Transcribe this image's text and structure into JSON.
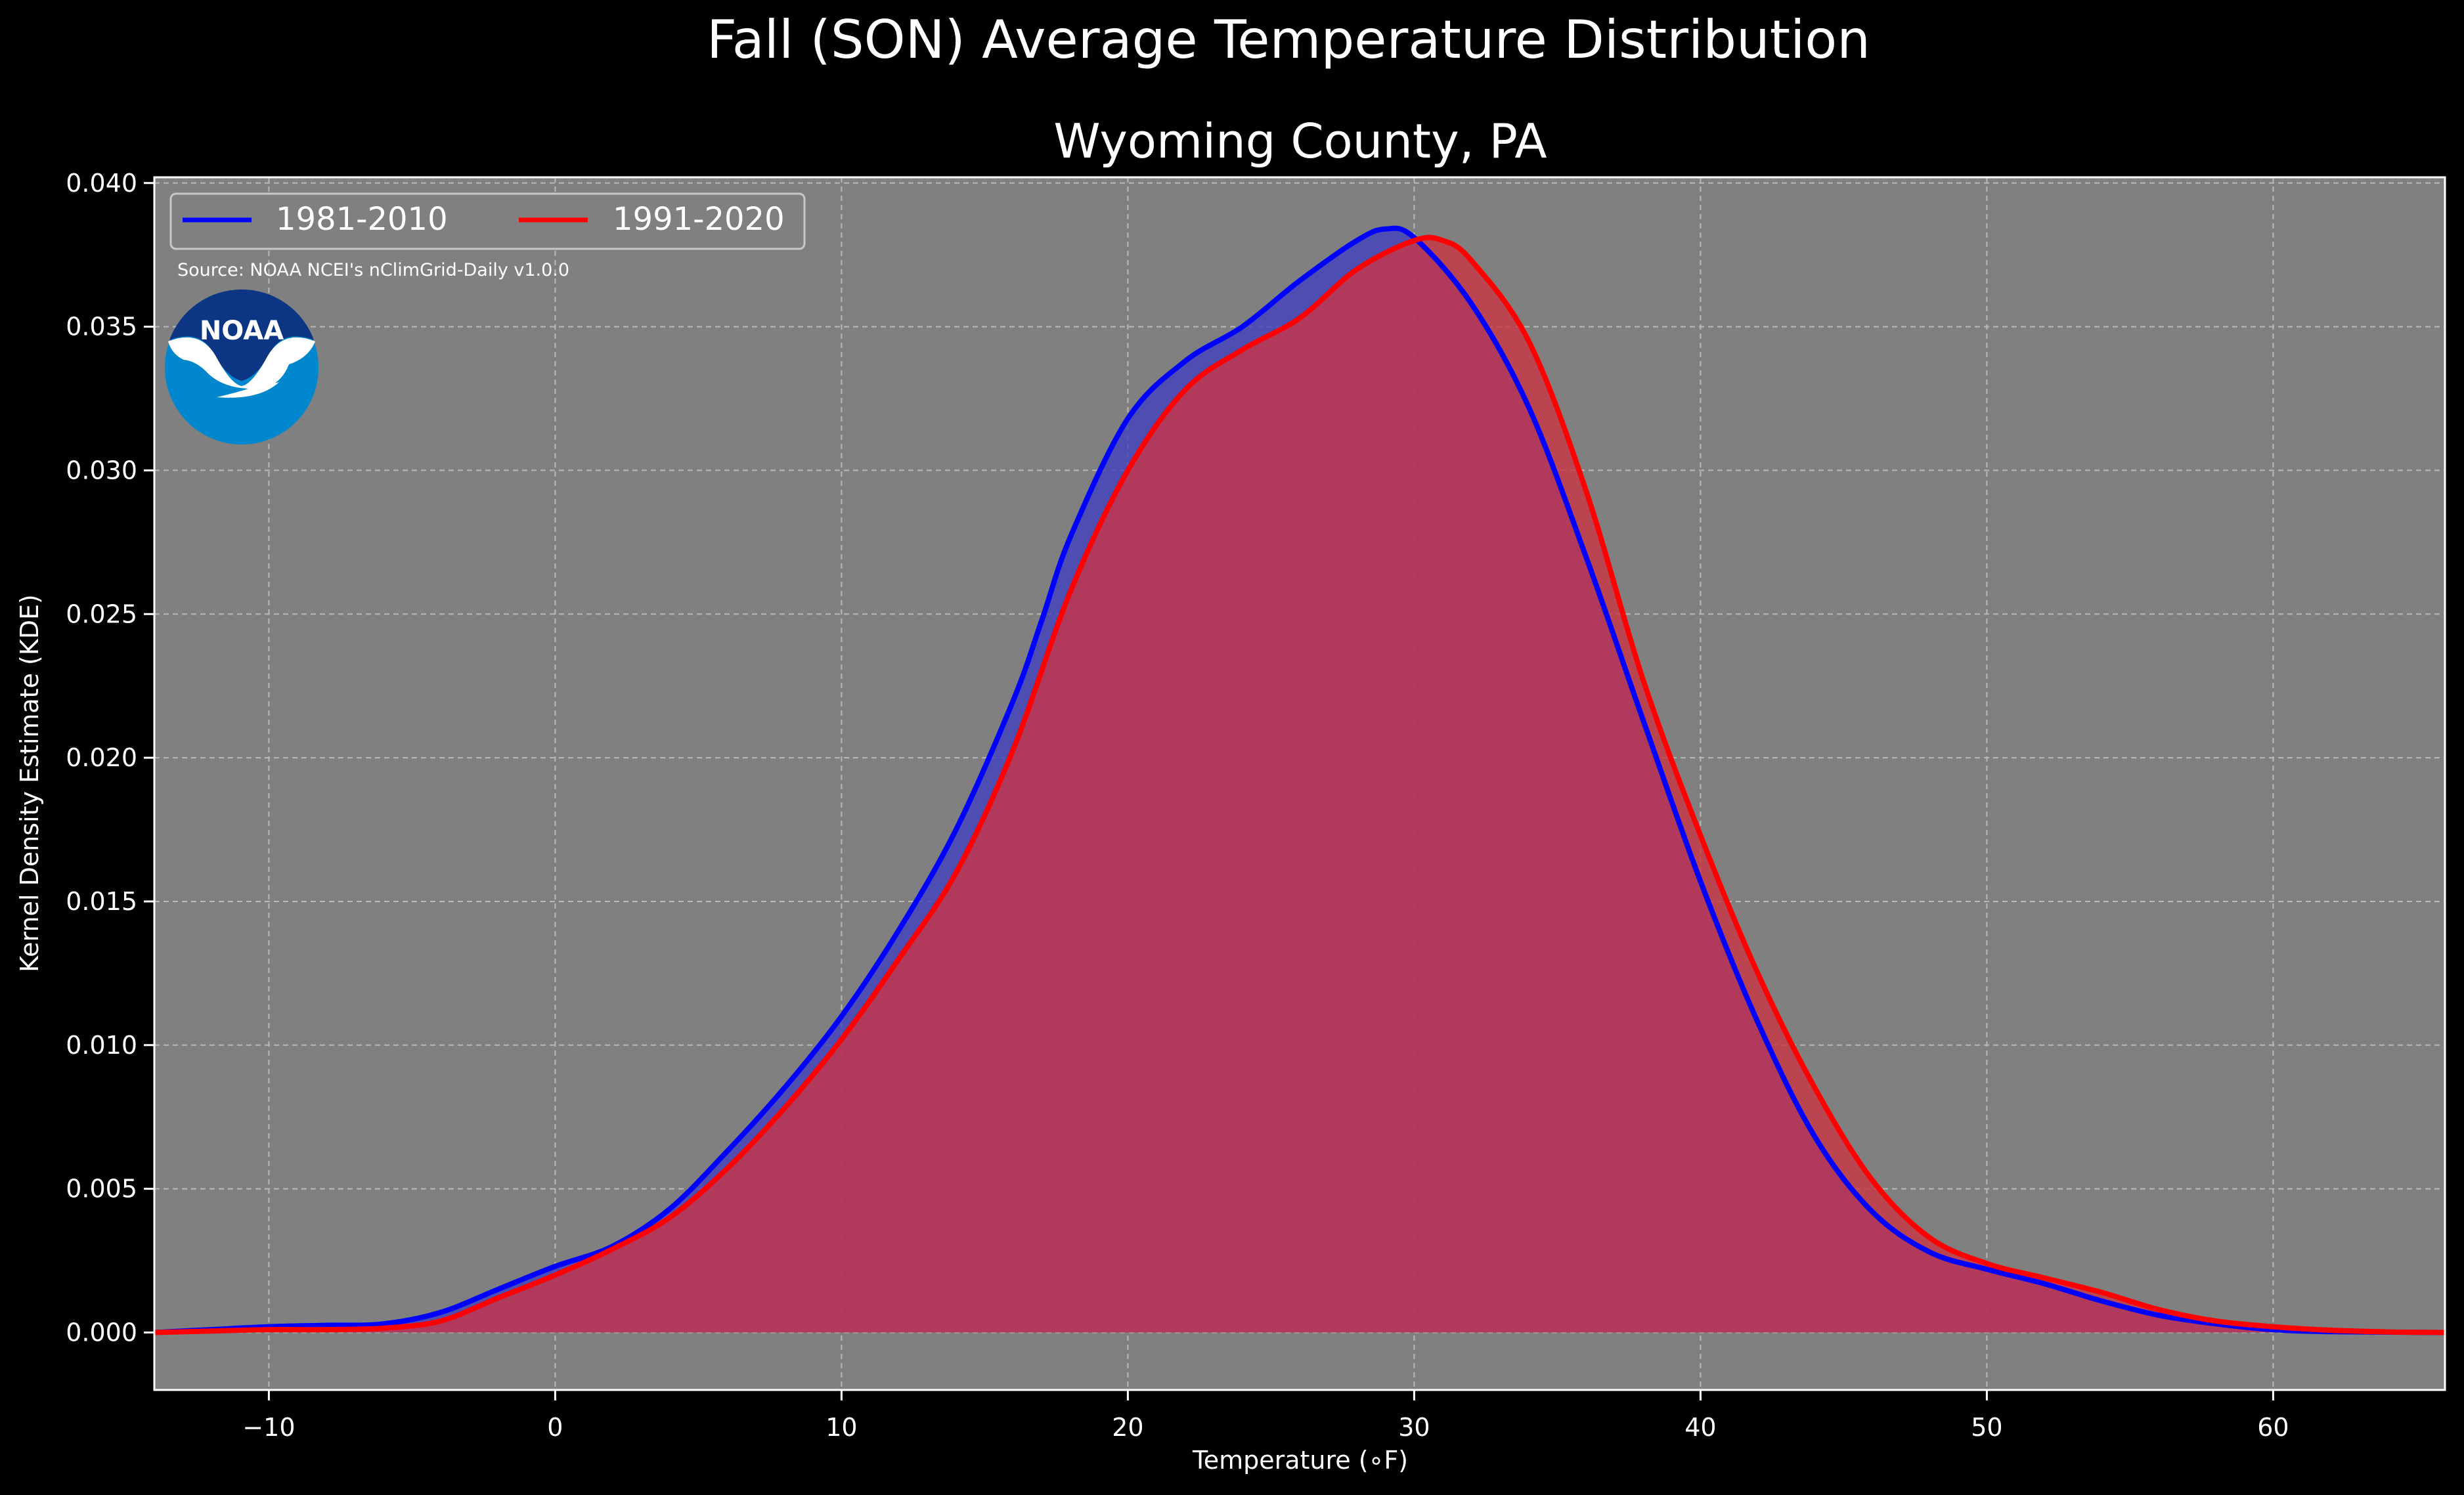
{
  "chart_data": {
    "type": "area",
    "title": "Fall (SON) Average Temperature Distribution",
    "subtitle": "Wyoming County, PA",
    "xlabel": "Temperature (∘F)",
    "ylabel": "Kernel Density Estimate (KDE)",
    "xlim": [
      -14,
      66
    ],
    "ylim": [
      -0.002,
      0.0402
    ],
    "xticks": [
      -10,
      0,
      10,
      20,
      30,
      40,
      50,
      60
    ],
    "xtick_labels": [
      "−10",
      "0",
      "10",
      "20",
      "30",
      "40",
      "50",
      "60"
    ],
    "yticks": [
      0.0,
      0.005,
      0.01,
      0.015,
      0.02,
      0.025,
      0.03,
      0.035,
      0.04
    ],
    "ytick_labels": [
      "0.000",
      "0.005",
      "0.010",
      "0.015",
      "0.020",
      "0.025",
      "0.030",
      "0.035",
      "0.040"
    ],
    "grid": true,
    "legend_placement": "top-left",
    "source_note": "Source: NOAA NCEI's nClimGrid-Daily v1.0.0",
    "logo_text": "NOAA",
    "series": [
      {
        "name": "1981-2010",
        "color": "#0000ff",
        "fill": "#4040c0",
        "points": [
          [
            -14,
            0.0
          ],
          [
            -12,
            0.0001
          ],
          [
            -10,
            0.0002
          ],
          [
            -8,
            0.00025
          ],
          [
            -6,
            0.0003
          ],
          [
            -4,
            0.0007
          ],
          [
            -2,
            0.0015
          ],
          [
            0,
            0.0023
          ],
          [
            2,
            0.003
          ],
          [
            4,
            0.0043
          ],
          [
            6,
            0.0063
          ],
          [
            8,
            0.0085
          ],
          [
            10,
            0.011
          ],
          [
            12,
            0.014
          ],
          [
            14,
            0.0175
          ],
          [
            16,
            0.022
          ],
          [
            17,
            0.0248
          ],
          [
            18,
            0.0277
          ],
          [
            20,
            0.0318
          ],
          [
            22,
            0.0338
          ],
          [
            24,
            0.035
          ],
          [
            26,
            0.0366
          ],
          [
            28,
            0.038
          ],
          [
            29,
            0.0384
          ],
          [
            30,
            0.0381
          ],
          [
            32,
            0.0358
          ],
          [
            34,
            0.0322
          ],
          [
            36,
            0.027
          ],
          [
            38,
            0.0213
          ],
          [
            40,
            0.0157
          ],
          [
            42,
            0.0108
          ],
          [
            44,
            0.0068
          ],
          [
            46,
            0.0042
          ],
          [
            48,
            0.0028
          ],
          [
            50,
            0.0022
          ],
          [
            52,
            0.0017
          ],
          [
            54,
            0.0011
          ],
          [
            56,
            0.0006
          ],
          [
            58,
            0.0003
          ],
          [
            60,
            0.0001
          ],
          [
            62,
            3e-05
          ],
          [
            66,
            0.0
          ]
        ]
      },
      {
        "name": "1991-2020",
        "color": "#ff0000",
        "fill": "#cc3344",
        "points": [
          [
            -14,
            0.0
          ],
          [
            -12,
            5e-05
          ],
          [
            -10,
            0.0001
          ],
          [
            -8,
            0.0001
          ],
          [
            -6,
            0.00015
          ],
          [
            -4,
            0.0004
          ],
          [
            -2,
            0.0012
          ],
          [
            0,
            0.002
          ],
          [
            2,
            0.0029
          ],
          [
            4,
            0.004
          ],
          [
            6,
            0.0057
          ],
          [
            8,
            0.0078
          ],
          [
            10,
            0.0102
          ],
          [
            12,
            0.013
          ],
          [
            14,
            0.016
          ],
          [
            16,
            0.0203
          ],
          [
            18,
            0.0258
          ],
          [
            20,
            0.03
          ],
          [
            22,
            0.0328
          ],
          [
            24,
            0.0342
          ],
          [
            26,
            0.0353
          ],
          [
            28,
            0.037
          ],
          [
            30,
            0.038
          ],
          [
            31,
            0.038
          ],
          [
            32,
            0.0373
          ],
          [
            34,
            0.0345
          ],
          [
            36,
            0.0293
          ],
          [
            38,
            0.0227
          ],
          [
            40,
            0.0173
          ],
          [
            42,
            0.0125
          ],
          [
            44,
            0.0085
          ],
          [
            46,
            0.0053
          ],
          [
            48,
            0.0033
          ],
          [
            50,
            0.0024
          ],
          [
            52,
            0.0019
          ],
          [
            54,
            0.0014
          ],
          [
            56,
            0.0008
          ],
          [
            58,
            0.0004
          ],
          [
            60,
            0.0002
          ],
          [
            62,
            8e-05
          ],
          [
            64,
            2e-05
          ],
          [
            66,
            0.0
          ]
        ]
      }
    ]
  }
}
